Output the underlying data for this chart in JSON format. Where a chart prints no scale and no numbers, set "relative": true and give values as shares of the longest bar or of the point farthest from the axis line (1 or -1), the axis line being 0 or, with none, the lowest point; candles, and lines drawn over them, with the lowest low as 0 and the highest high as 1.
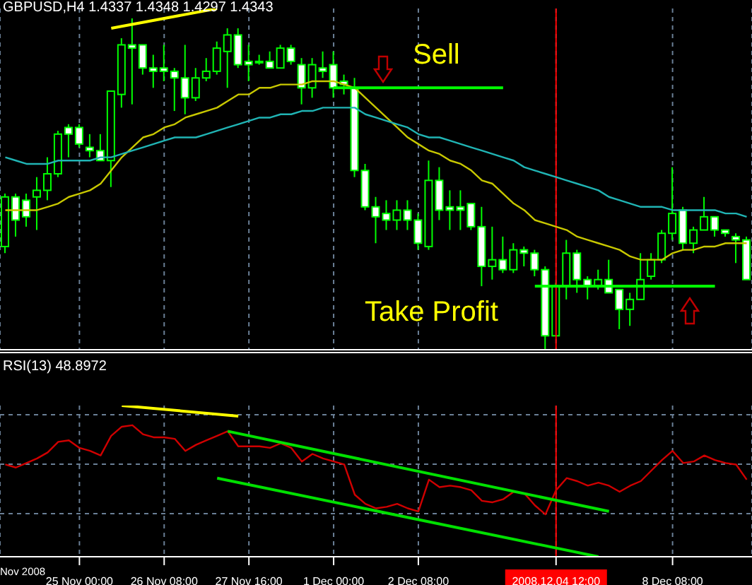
{
  "chart_data": [
    {
      "type": "candlestick",
      "title": "GBPUSD,H4 1.4337 1.4348 1.4297 1.4343",
      "relative": true,
      "grid": "x",
      "legend": false,
      "tick_labels": false,
      "marker": "none",
      "color": "#00ff00",
      "categories": [
        null,
        null,
        null,
        null,
        null,
        null,
        null,
        "25 Nov 00:00",
        null,
        null,
        null,
        null,
        null,
        null,
        null,
        "26 Nov 08:00",
        null,
        null,
        null,
        null,
        null,
        null,
        null,
        "27 Nov 16:00",
        null,
        null,
        null,
        null,
        null,
        null,
        null,
        "1 Dec 00:00",
        null,
        null,
        null,
        null,
        null,
        null,
        null,
        "2 Dec 08:00",
        null,
        null,
        null,
        null,
        null,
        null,
        null,
        null,
        null,
        null,
        null,
        null,
        "2008.12.04 12:00",
        null,
        null,
        null,
        null,
        null,
        null,
        null,
        null,
        null,
        null,
        "8 Dec 08:00",
        null,
        null,
        null,
        null,
        null,
        null,
        null
      ],
      "ohlc": [
        [
          0.31,
          0.47,
          0.29,
          0.46
        ],
        [
          0.46,
          0.47,
          0.34,
          0.39
        ],
        [
          0.45,
          0.47,
          0.37,
          0.4
        ],
        [
          0.46,
          0.52,
          0.36,
          0.48
        ],
        [
          0.48,
          0.58,
          0.45,
          0.53
        ],
        [
          0.53,
          0.66,
          0.52,
          0.65
        ],
        [
          0.67,
          0.68,
          0.58,
          0.65
        ],
        [
          0.67,
          0.68,
          0.61,
          0.62
        ],
        [
          0.61,
          0.65,
          0.58,
          0.6
        ],
        [
          0.6,
          0.65,
          0.57,
          0.57
        ],
        [
          0.57,
          0.78,
          0.49,
          0.78
        ],
        [
          0.77,
          0.94,
          0.73,
          0.92
        ],
        [
          0.92,
          1,
          0.74,
          0.91
        ],
        [
          0.92,
          0.92,
          0.83,
          0.85
        ],
        [
          0.85,
          0.89,
          0.79,
          0.84
        ],
        [
          0.85,
          0.92,
          0.81,
          0.84
        ],
        [
          0.84,
          0.85,
          0.72,
          0.82
        ],
        [
          0.82,
          0.92,
          0.71,
          0.76
        ],
        [
          0.76,
          0.85,
          0.75,
          0.82
        ],
        [
          0.82,
          0.88,
          0.81,
          0.84
        ],
        [
          0.84,
          0.93,
          0.83,
          0.91
        ],
        [
          0.9,
          0.97,
          0.79,
          0.95
        ],
        [
          0.95,
          0.97,
          0.85,
          0.86
        ],
        [
          0.87,
          0.92,
          0.81,
          0.86
        ],
        [
          0.87,
          0.89,
          0.86,
          0.87
        ],
        [
          0.87,
          0.9,
          0.85,
          0.85
        ],
        [
          0.85,
          0.92,
          0.85,
          0.91
        ],
        [
          0.91,
          0.92,
          0.86,
          0.87
        ],
        [
          0.86,
          0.88,
          0.74,
          0.79
        ],
        [
          0.79,
          0.88,
          0.76,
          0.86
        ],
        [
          0.85,
          0.9,
          0.82,
          0.84
        ],
        [
          0.86,
          0.9,
          0.76,
          0.79
        ],
        [
          0.81,
          0.83,
          0.77,
          0.8
        ],
        [
          0.79,
          0.82,
          0.52,
          0.54
        ],
        [
          0.54,
          0.56,
          0.42,
          0.43
        ],
        [
          0.43,
          0.46,
          0.32,
          0.4
        ],
        [
          0.41,
          0.45,
          0.36,
          0.39
        ],
        [
          0.39,
          0.45,
          0.36,
          0.42
        ],
        [
          0.42,
          0.45,
          0.36,
          0.39
        ],
        [
          0.39,
          0.41,
          0.3,
          0.32
        ],
        [
          0.31,
          0.57,
          0.3,
          0.51
        ],
        [
          0.51,
          0.55,
          0.39,
          0.42
        ],
        [
          0.43,
          0.48,
          0.36,
          0.42
        ],
        [
          0.43,
          0.48,
          0.36,
          0.42
        ],
        [
          0.44,
          0.44,
          0.36,
          0.37
        ],
        [
          0.37,
          0.43,
          0.19,
          0.25
        ],
        [
          0.25,
          0.37,
          0.21,
          0.27
        ],
        [
          0.27,
          0.34,
          0.23,
          0.24
        ],
        [
          0.24,
          0.32,
          0.23,
          0.3
        ],
        [
          0.3,
          0.31,
          0.25,
          0.29
        ],
        [
          0.29,
          0.3,
          0.22,
          0.24
        ],
        [
          0.24,
          0.25,
          0,
          0.04
        ],
        [
          0.04,
          0.2,
          0.04,
          0.19
        ],
        [
          0.19,
          0.33,
          0.15,
          0.29
        ],
        [
          0.29,
          0.3,
          0.17,
          0.21
        ],
        [
          0.21,
          0.22,
          0.15,
          0.19
        ],
        [
          0.19,
          0.24,
          0.18,
          0.21
        ],
        [
          0.21,
          0.27,
          0.17,
          0.17
        ],
        [
          0.18,
          0.18,
          0.06,
          0.12
        ],
        [
          0.12,
          0.17,
          0.07,
          0.15
        ],
        [
          0.15,
          0.29,
          0.15,
          0.21
        ],
        [
          0.22,
          0.29,
          0.21,
          0.27
        ],
        [
          0.27,
          0.36,
          0.26,
          0.35
        ],
        [
          0.35,
          0.55,
          0.33,
          0.41
        ],
        [
          0.42,
          0.43,
          0.3,
          0.32
        ],
        [
          0.32,
          0.37,
          0.29,
          0.36
        ],
        [
          0.36,
          0.46,
          0.36,
          0.4
        ],
        [
          0.4,
          0.4,
          0.34,
          0.36
        ],
        [
          0.36,
          0.36,
          0.34,
          0.35
        ],
        [
          0.34,
          0.35,
          0.26,
          0.33
        ],
        [
          0.33,
          0.34,
          0.21,
          0.21
        ]
      ],
      "series": [
        {
          "type": "line",
          "color": "#c8c800",
          "values": [
            0.42,
            0.42,
            0.42,
            0.42,
            0.43,
            0.44,
            0.46,
            0.47,
            0.48,
            0.5,
            0.54,
            0.58,
            0.61,
            0.64,
            0.65,
            0.67,
            0.68,
            0.7,
            0.71,
            0.72,
            0.73,
            0.75,
            0.77,
            0.77,
            0.79,
            0.79,
            0.8,
            0.8,
            0.8,
            0.81,
            0.81,
            0.81,
            0.8,
            0.79,
            0.76,
            0.73,
            0.7,
            0.67,
            0.64,
            0.62,
            0.6,
            0.59,
            0.57,
            0.56,
            0.54,
            0.51,
            0.5,
            0.47,
            0.44,
            0.42,
            0.39,
            0.38,
            0.37,
            0.36,
            0.34,
            0.33,
            0.32,
            0.31,
            0.3,
            0.28,
            0.27,
            0.27,
            0.27,
            0.29,
            0.3,
            0.3,
            0.31,
            0.31,
            0.32,
            0.32,
            0.32
          ]
        },
        {
          "type": "line",
          "color": "#20b4b4",
          "values": [
            0.58,
            0.57,
            0.56,
            0.56,
            0.56,
            0.57,
            0.57,
            0.57,
            0.57,
            0.58,
            0.58,
            0.59,
            0.6,
            0.61,
            0.62,
            0.63,
            0.64,
            0.64,
            0.64,
            0.65,
            0.66,
            0.67,
            0.68,
            0.69,
            0.7,
            0.7,
            0.71,
            0.71,
            0.72,
            0.72,
            0.73,
            0.73,
            0.73,
            0.73,
            0.71,
            0.7,
            0.69,
            0.68,
            0.67,
            0.65,
            0.64,
            0.64,
            0.63,
            0.62,
            0.61,
            0.6,
            0.59,
            0.58,
            0.57,
            0.55,
            0.54,
            0.53,
            0.52,
            0.51,
            0.5,
            0.49,
            0.48,
            0.46,
            0.45,
            0.44,
            0.43,
            0.43,
            0.43,
            0.42,
            0.42,
            0.42,
            0.42,
            0.42,
            0.41,
            0.41,
            0.4
          ]
        },
        {
          "type": "line",
          "color": "#ffff00",
          "values": [
            null,
            null,
            null,
            null,
            null,
            null,
            null,
            null,
            null,
            null,
            0.97,
            null,
            null,
            null,
            null,
            null,
            null,
            null,
            null,
            null,
            1.03,
            null,
            null,
            null,
            null,
            null,
            null,
            null,
            null,
            null,
            null,
            null,
            null,
            null,
            null,
            null,
            null,
            null,
            null,
            null,
            null,
            null,
            null,
            null,
            null,
            null,
            null,
            null,
            null,
            null,
            null,
            null,
            null,
            null,
            null,
            null,
            null,
            null,
            null,
            null,
            null,
            null,
            null,
            null,
            null,
            null,
            null,
            null,
            null,
            null,
            null
          ]
        },
        {
          "type": "line",
          "color": "#00ff00",
          "values": [
            null,
            null,
            null,
            null,
            null,
            null,
            null,
            null,
            null,
            null,
            null,
            null,
            null,
            null,
            null,
            null,
            null,
            null,
            null,
            null,
            null,
            null,
            null,
            null,
            null,
            null,
            null,
            null,
            null,
            null,
            null,
            0.79,
            null,
            null,
            null,
            null,
            null,
            null,
            null,
            null,
            null,
            null,
            null,
            null,
            null,
            null,
            null,
            0.79,
            null,
            null,
            null,
            null,
            null,
            null,
            null,
            null,
            null,
            null,
            null,
            null,
            null,
            null,
            null,
            null,
            null,
            null,
            null,
            null,
            null,
            null,
            null
          ]
        },
        {
          "type": "line",
          "color": "#00ff00",
          "values": [
            null,
            null,
            null,
            null,
            null,
            null,
            null,
            null,
            null,
            null,
            null,
            null,
            null,
            null,
            null,
            null,
            null,
            null,
            null,
            null,
            null,
            null,
            null,
            null,
            null,
            null,
            null,
            null,
            null,
            null,
            null,
            null,
            null,
            null,
            null,
            null,
            null,
            null,
            null,
            null,
            null,
            null,
            null,
            null,
            null,
            null,
            null,
            null,
            null,
            null,
            0.19,
            null,
            null,
            null,
            null,
            null,
            null,
            null,
            null,
            null,
            null,
            null,
            null,
            null,
            null,
            null,
            null,
            0.19,
            null,
            null,
            null
          ]
        }
      ],
      "ref_lines": [
        {
          "axis": "x",
          "value": "2008.12.04 12:00",
          "color": "#ff0000"
        }
      ],
      "annotations": [
        "Sell",
        "Take Profit"
      ]
    },
    {
      "type": "line",
      "title": "RSI(13) 48.8972",
      "relative": true,
      "grid": true,
      "legend": false,
      "tick_labels": "x",
      "marker": "none",
      "categories": [
        null,
        null,
        null,
        null,
        null,
        null,
        null,
        "25 Nov 00:00",
        null,
        null,
        null,
        null,
        null,
        null,
        null,
        "26 Nov 08:00",
        null,
        null,
        null,
        null,
        null,
        null,
        null,
        "27 Nov 16:00",
        null,
        null,
        null,
        null,
        null,
        null,
        null,
        "1 Dec 00:00",
        null,
        null,
        null,
        null,
        null,
        null,
        null,
        "2 Dec 08:00",
        null,
        null,
        null,
        null,
        null,
        null,
        null,
        null,
        null,
        null,
        null,
        null,
        "2008.12.04 12:00",
        null,
        null,
        null,
        null,
        null,
        null,
        null,
        null,
        null,
        null,
        "8 Dec 08:00",
        null,
        null,
        null,
        null,
        null,
        null,
        null
      ],
      "annotations": [
        "Nov 2008"
      ],
      "series": [
        {
          "color": "#d00000",
          "values": [
            0.61,
            0.59,
            0.62,
            0.65,
            0.69,
            0.76,
            0.77,
            0.72,
            0.7,
            0.67,
            0.8,
            0.86,
            0.87,
            0.81,
            0.79,
            0.79,
            0.78,
            0.7,
            0.74,
            0.77,
            0.8,
            0.83,
            0.73,
            0.73,
            0.73,
            0.72,
            0.75,
            0.72,
            0.63,
            0.68,
            0.65,
            0.63,
            0.61,
            0.41,
            0.35,
            0.32,
            0.33,
            0.35,
            0.32,
            0.3,
            0.51,
            0.46,
            0.47,
            0.46,
            0.44,
            0.37,
            0.36,
            0.38,
            0.43,
            0.42,
            0.34,
            0.28,
            0.44,
            0.52,
            0.5,
            0.47,
            0.49,
            0.47,
            0.43,
            0.47,
            0.5,
            0.57,
            0.64,
            0.7,
            0.62,
            0.63,
            0.67,
            0.64,
            0.62,
            0.61,
            0.51
          ]
        },
        {
          "color": "#ffff00",
          "values": [
            null,
            null,
            null,
            null,
            null,
            null,
            null,
            null,
            null,
            null,
            null,
            1,
            null,
            null,
            null,
            null,
            null,
            null,
            null,
            null,
            null,
            null,
            0.93,
            null,
            null,
            null,
            null,
            null,
            null,
            null,
            null,
            null,
            null,
            null,
            null,
            null,
            null,
            null,
            null,
            null,
            null,
            null,
            null,
            null,
            null,
            null,
            null,
            null,
            null,
            null,
            null,
            null,
            null,
            null,
            null,
            null,
            null,
            null,
            null,
            null,
            null,
            null,
            null,
            null,
            null,
            null,
            null,
            null,
            null,
            null,
            null
          ]
        },
        {
          "color": "#00e000",
          "values": [
            null,
            null,
            null,
            null,
            null,
            null,
            null,
            null,
            null,
            null,
            null,
            null,
            null,
            null,
            null,
            null,
            null,
            null,
            null,
            null,
            null,
            0.83,
            null,
            null,
            null,
            null,
            null,
            null,
            null,
            null,
            null,
            null,
            null,
            null,
            null,
            null,
            null,
            null,
            null,
            null,
            null,
            null,
            null,
            null,
            null,
            null,
            null,
            null,
            null,
            null,
            null,
            null,
            null,
            null,
            null,
            null,
            null,
            0.3,
            null,
            null,
            null,
            null,
            null,
            null,
            null,
            null,
            null,
            null,
            null,
            null,
            null
          ]
        },
        {
          "color": "#00e000",
          "values": [
            null,
            null,
            null,
            null,
            null,
            null,
            null,
            null,
            null,
            null,
            null,
            null,
            null,
            null,
            null,
            null,
            null,
            null,
            null,
            null,
            0.52,
            null,
            null,
            null,
            null,
            null,
            null,
            null,
            null,
            null,
            null,
            null,
            null,
            null,
            null,
            null,
            null,
            null,
            null,
            null,
            null,
            null,
            null,
            null,
            null,
            null,
            null,
            null,
            null,
            null,
            null,
            null,
            null,
            null,
            null,
            null,
            0,
            null,
            null,
            null,
            null,
            null,
            null,
            null,
            null,
            null,
            null,
            null,
            null,
            null,
            null
          ]
        }
      ],
      "ref_lines": [
        {
          "axis": "x",
          "value": "2008.12.04 12:00",
          "color": "#ff0000"
        }
      ]
    }
  ]
}
